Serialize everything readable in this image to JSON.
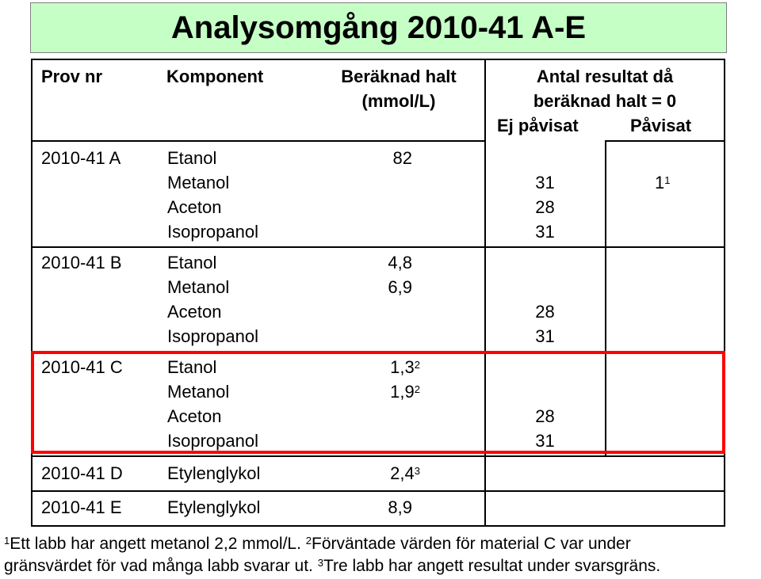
{
  "title": "Analysomgång 2010-41 A-E",
  "headers": {
    "prov_nr": "Prov nr",
    "komponent": "Komponent",
    "beraknad_halt": [
      "Beräknad halt",
      "(mmol/L)"
    ],
    "antal": [
      "Antal resultat då",
      "beräknad halt = 0"
    ],
    "ej_pavisat": "Ej påvisat",
    "pavisat": "Påvisat"
  },
  "groups": [
    {
      "prov": "2010-41 A",
      "components": [
        "Etanol",
        "Metanol",
        "Aceton",
        "Isopropanol"
      ],
      "halt": [
        {
          "v": "82"
        },
        {
          "v": ""
        },
        {
          "v": ""
        },
        {
          "v": ""
        }
      ],
      "ej": [
        "",
        "31",
        "28",
        "31"
      ],
      "pav": [
        "",
        "1",
        "",
        ""
      ],
      "pav_sup": [
        "",
        "1",
        "",
        ""
      ]
    },
    {
      "prov": "2010-41 B",
      "components": [
        "Etanol",
        "Metanol",
        "Aceton",
        "Isopropanol"
      ],
      "halt": [
        {
          "v": "4,8"
        },
        {
          "v": "6,9"
        },
        {
          "v": ""
        },
        {
          "v": ""
        }
      ],
      "ej": [
        "",
        "",
        "28",
        "31"
      ],
      "pav": [
        "",
        "",
        "",
        ""
      ]
    },
    {
      "prov": "2010-41 C",
      "components": [
        "Etanol",
        "Metanol",
        "Aceton",
        "Isopropanol"
      ],
      "halt": [
        {
          "v": "1,3",
          "sup": "2"
        },
        {
          "v": "1,9",
          "sup": "2"
        },
        {
          "v": ""
        },
        {
          "v": ""
        }
      ],
      "ej": [
        "",
        "",
        "28",
        "31"
      ],
      "pav": [
        "",
        "",
        "",
        ""
      ]
    },
    {
      "prov": "2010-41 D",
      "components": [
        "Etylenglykol"
      ],
      "halt": [
        {
          "v": "2,4",
          "sup": "3"
        }
      ],
      "ej": [
        ""
      ],
      "pav": [
        ""
      ]
    },
    {
      "prov": "2010-41 E",
      "components": [
        "Etylenglykol"
      ],
      "halt": [
        {
          "v": "8,9"
        }
      ],
      "ej": [
        ""
      ],
      "pav": [
        ""
      ]
    }
  ],
  "footnotes": {
    "line1": [
      {
        "sup": "1"
      },
      {
        "text": "Ett labb har angett metanol 2,2 mmol/L. "
      },
      {
        "sup": "2"
      },
      {
        "text": "Förväntade värden för material C var under"
      }
    ],
    "line2": [
      {
        "text": "gränsvärdet för vad många labb svarar ut. "
      },
      {
        "sup": "3"
      },
      {
        "text": "Tre labb har angett resultat under svarsgräns."
      }
    ]
  }
}
